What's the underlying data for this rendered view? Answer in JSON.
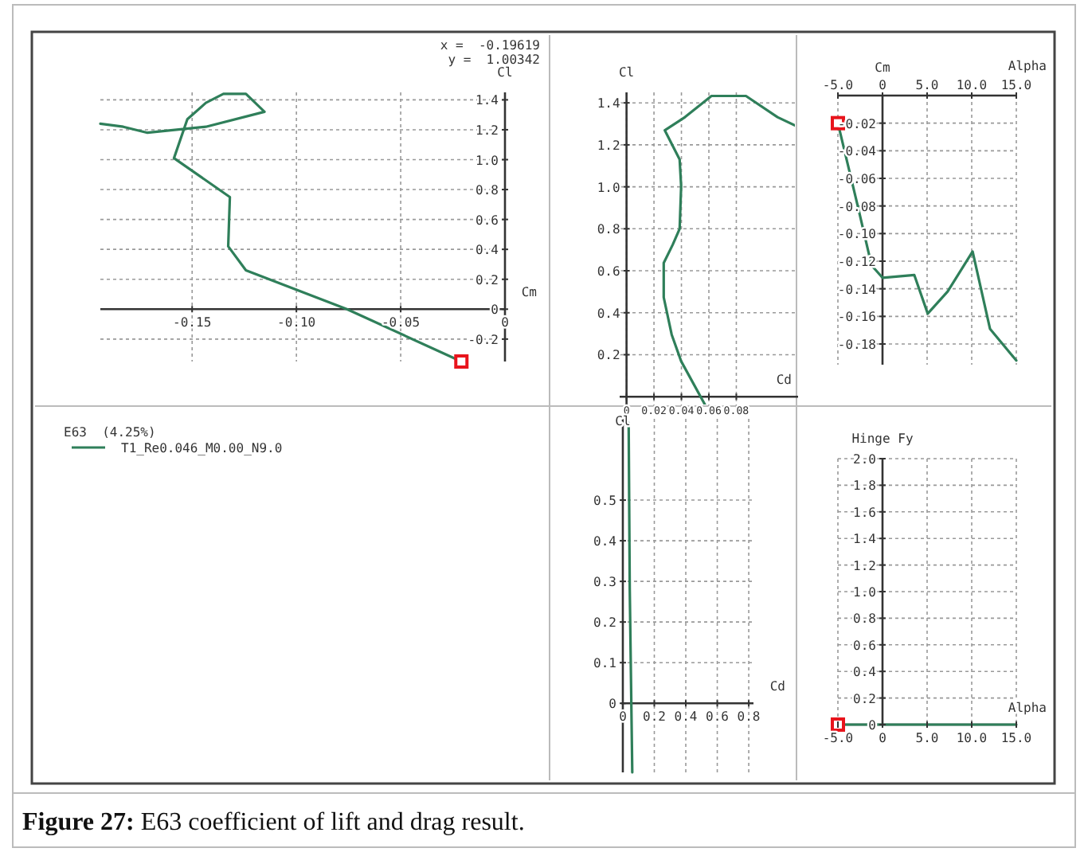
{
  "chart_data": [
    {
      "type": "line",
      "title": "Figure 27: E63 coefficient of lift and drag result.",
      "xlabel": "Cm",
      "ylabel": "Cl",
      "xlim": [
        -0.194,
        0
      ],
      "ylim": [
        -0.35,
        1.45
      ],
      "xticks": [
        -0.15,
        {
          "value": -0.1,
          "label": "-0.10"
        },
        -0.05,
        0
      ],
      "yticks": [
        -0.2,
        0,
        0.2,
        0.4,
        0.6,
        0.8,
        {
          "value": 1,
          "label": "1.0"
        },
        1.2,
        1.4
      ],
      "grid": true,
      "legend": "bottom",
      "legend_title": "E63  (4.25%)",
      "annotations": [
        "x =  -0.19619",
        "y =  1.00342"
      ],
      "series": [
        {
          "name": "T1_Re0.046_M0.00_N9.0",
          "color": "#2f7f5a",
          "x": [
            -0.0209,
            -0.0758,
            -0.1242,
            -0.1327,
            -0.1319,
            -0.1587,
            -0.1523,
            -0.1434,
            -0.135,
            -0.1242,
            -0.1153,
            -0.1434,
            -0.1714,
            -0.183,
            -0.194
          ],
          "values": [
            -0.35,
            0,
            0.26,
            0.42,
            0.75,
            1.01,
            1.27,
            1.38,
            1.44,
            1.44,
            1.32,
            1.22,
            1.18,
            1.22,
            1.24
          ]
        },
        {
          "type": "scatter",
          "marker": "square",
          "color": "#e8141c",
          "x": [
            -0.0209
          ],
          "values": [
            -0.35
          ]
        }
      ]
    },
    {
      "type": "line",
      "xlabel": "Cd",
      "ylabel": "Cl",
      "xlim": [
        -0.005,
        0.125
      ],
      "ylim": [
        -0.06,
        1.45
      ],
      "xticks": [
        0,
        0.02,
        0.04,
        0.06,
        0.08
      ],
      "yticks": [
        0.2,
        0.4,
        0.6,
        0.8,
        {
          "value": 1,
          "label": "1.0"
        },
        1.2,
        1.4
      ],
      "grid": true,
      "series": [
        {
          "color": "#2f7f5a",
          "x": [
            0.059,
            0.0398,
            0.0329,
            0.0271,
            0.0271,
            0.0337,
            0.0387,
            0.0398,
            0.0387,
            0.0279,
            0.0426,
            0.0619,
            0.087,
            0.11,
            0.125
          ],
          "values": [
            -0.06,
            0.169,
            0.296,
            0.473,
            0.637,
            0.725,
            0.8,
            1.003,
            1.13,
            1.269,
            1.332,
            1.433,
            1.433,
            1.332,
            1.285
          ]
        }
      ]
    },
    {
      "type": "line",
      "xlabel": "Alpha",
      "ylabel": "Cm",
      "xlim": [
        -5,
        15
      ],
      "ylim": [
        -0.195,
        0
      ],
      "xticks": [
        {
          "value": -5,
          "label": "-5.0"
        },
        0,
        {
          "value": 5,
          "label": "5.0"
        },
        {
          "value": 10,
          "label": "10.0"
        },
        {
          "value": 15,
          "label": "15.0"
        }
      ],
      "yticks": [
        -0.02,
        -0.04,
        -0.06,
        -0.08,
        {
          "value": -0.1,
          "label": "-0.10"
        },
        -0.12,
        -0.14,
        -0.16,
        -0.18
      ],
      "grid": true,
      "series": [
        {
          "color": "#2f7f5a",
          "x": [
            -5,
            -2.74,
            -1.23,
            0,
            3.56,
            5.07,
            7.3,
            10.1,
            12.05,
            15
          ],
          "values": [
            -0.02,
            -0.081,
            -0.123,
            -0.132,
            -0.13,
            -0.158,
            -0.142,
            -0.113,
            -0.169,
            -0.192
          ]
        },
        {
          "type": "scatter",
          "marker": "square",
          "color": "#e8141c",
          "x": [
            -5
          ],
          "values": [
            -0.02
          ]
        }
      ]
    },
    {
      "type": "line",
      "xlabel": "Cd",
      "ylabel": "Cl",
      "xlim": [
        -0.01,
        0.83
      ],
      "ylim": [
        -0.17,
        0.7
      ],
      "xticks": [
        0,
        0.2,
        0.4,
        0.6,
        0.8
      ],
      "yticks": [
        0,
        0.1,
        0.2,
        0.3,
        0.4,
        0.5
      ],
      "grid": true,
      "series": [
        {
          "color": "#2f7f5a",
          "x": [
            0.037,
            0.044,
            0.06
          ],
          "values": [
            0.69,
            0.28,
            -0.17
          ]
        }
      ]
    },
    {
      "type": "line",
      "xlabel": "Alpha",
      "ylabel": "Hinge Fy",
      "xlim": [
        -5,
        15
      ],
      "ylim": [
        0,
        2
      ],
      "xticks": [
        {
          "value": -5,
          "label": "-5.0"
        },
        0,
        {
          "value": 5,
          "label": "5.0"
        },
        {
          "value": 10,
          "label": "10.0"
        },
        {
          "value": 15,
          "label": "15.0"
        }
      ],
      "yticks": [
        0,
        0.2,
        0.4,
        0.6,
        0.8,
        {
          "value": 1,
          "label": "1.0"
        },
        1.2,
        1.4,
        1.6,
        1.8,
        {
          "value": 2,
          "label": "2.0"
        }
      ],
      "grid": true,
      "series": [
        {
          "color": "#2f7f5a",
          "x": [
            -5,
            15
          ],
          "values": [
            0,
            0
          ]
        },
        {
          "type": "scatter",
          "marker": "square",
          "color": "#e8141c",
          "x": [
            -5
          ],
          "values": [
            0
          ]
        }
      ]
    }
  ]
}
